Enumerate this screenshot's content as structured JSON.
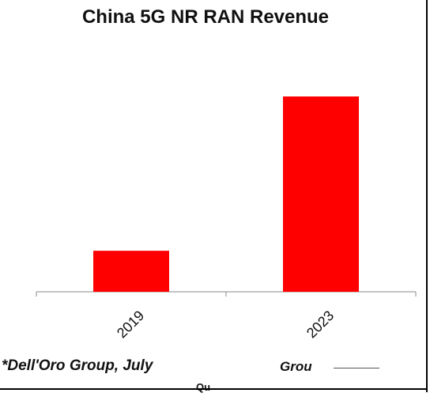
{
  "chart_data": {
    "type": "bar",
    "title": "China 5G NR RAN Revenue",
    "categories": [
      "2019",
      "2023"
    ],
    "series": [
      {
        "values": [
          21,
          100
        ]
      }
    ],
    "xlabel": "",
    "ylabel": "",
    "ylim": [
      0,
      100
    ],
    "grid": false,
    "legend": "none",
    "colors": {
      "bar": "#ff0000",
      "axis": "#888888"
    }
  },
  "footer": {
    "source_note": "*Dell'Oro Group, July ",
    "source_fragment": "Grou",
    "bottom_fragment": "Qu"
  }
}
